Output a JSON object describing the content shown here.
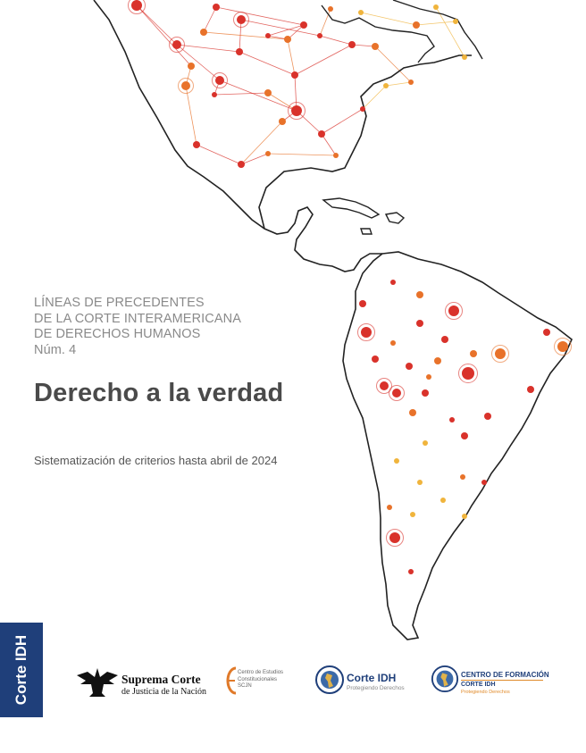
{
  "cover": {
    "series_lines": [
      "LÍNEAS DE PRECEDENTES",
      "DE LA CORTE INTERAMERICANA",
      "DE DERECHOS HUMANOS",
      "Núm. 4"
    ],
    "title": "Derecho a la verdad",
    "subtitle": "Sistematización de criterios hasta abril de 2024",
    "side_band": "Corte IDH"
  },
  "logos": {
    "scjn": {
      "line1": "Suprema Corte",
      "line2": "de Justicia de la Nación",
      "icon": "eagle-emblem-icon"
    },
    "cec": {
      "line1": "Centro de Estudios",
      "line2": "Constitucionales",
      "line3": "SCJN",
      "icon": "cec-e-icon"
    },
    "corte_idh": {
      "line1": "Corte IDH",
      "line2": "Protegiendo Derechos",
      "icon": "corte-idh-seal-icon"
    },
    "centro_formacion": {
      "line1": "CENTRO DE FORMACIÓN",
      "line2": "CORTE IDH",
      "line3": "Protegiendo Derechos",
      "icon": "corte-idh-seal-icon"
    }
  },
  "colors": {
    "band": "#1f3f7a",
    "title": "#4a4a4a",
    "series": "#8a8a8a",
    "node_red": "#d9322b",
    "node_orange": "#e8722a",
    "node_yellow": "#f0b43c"
  }
}
